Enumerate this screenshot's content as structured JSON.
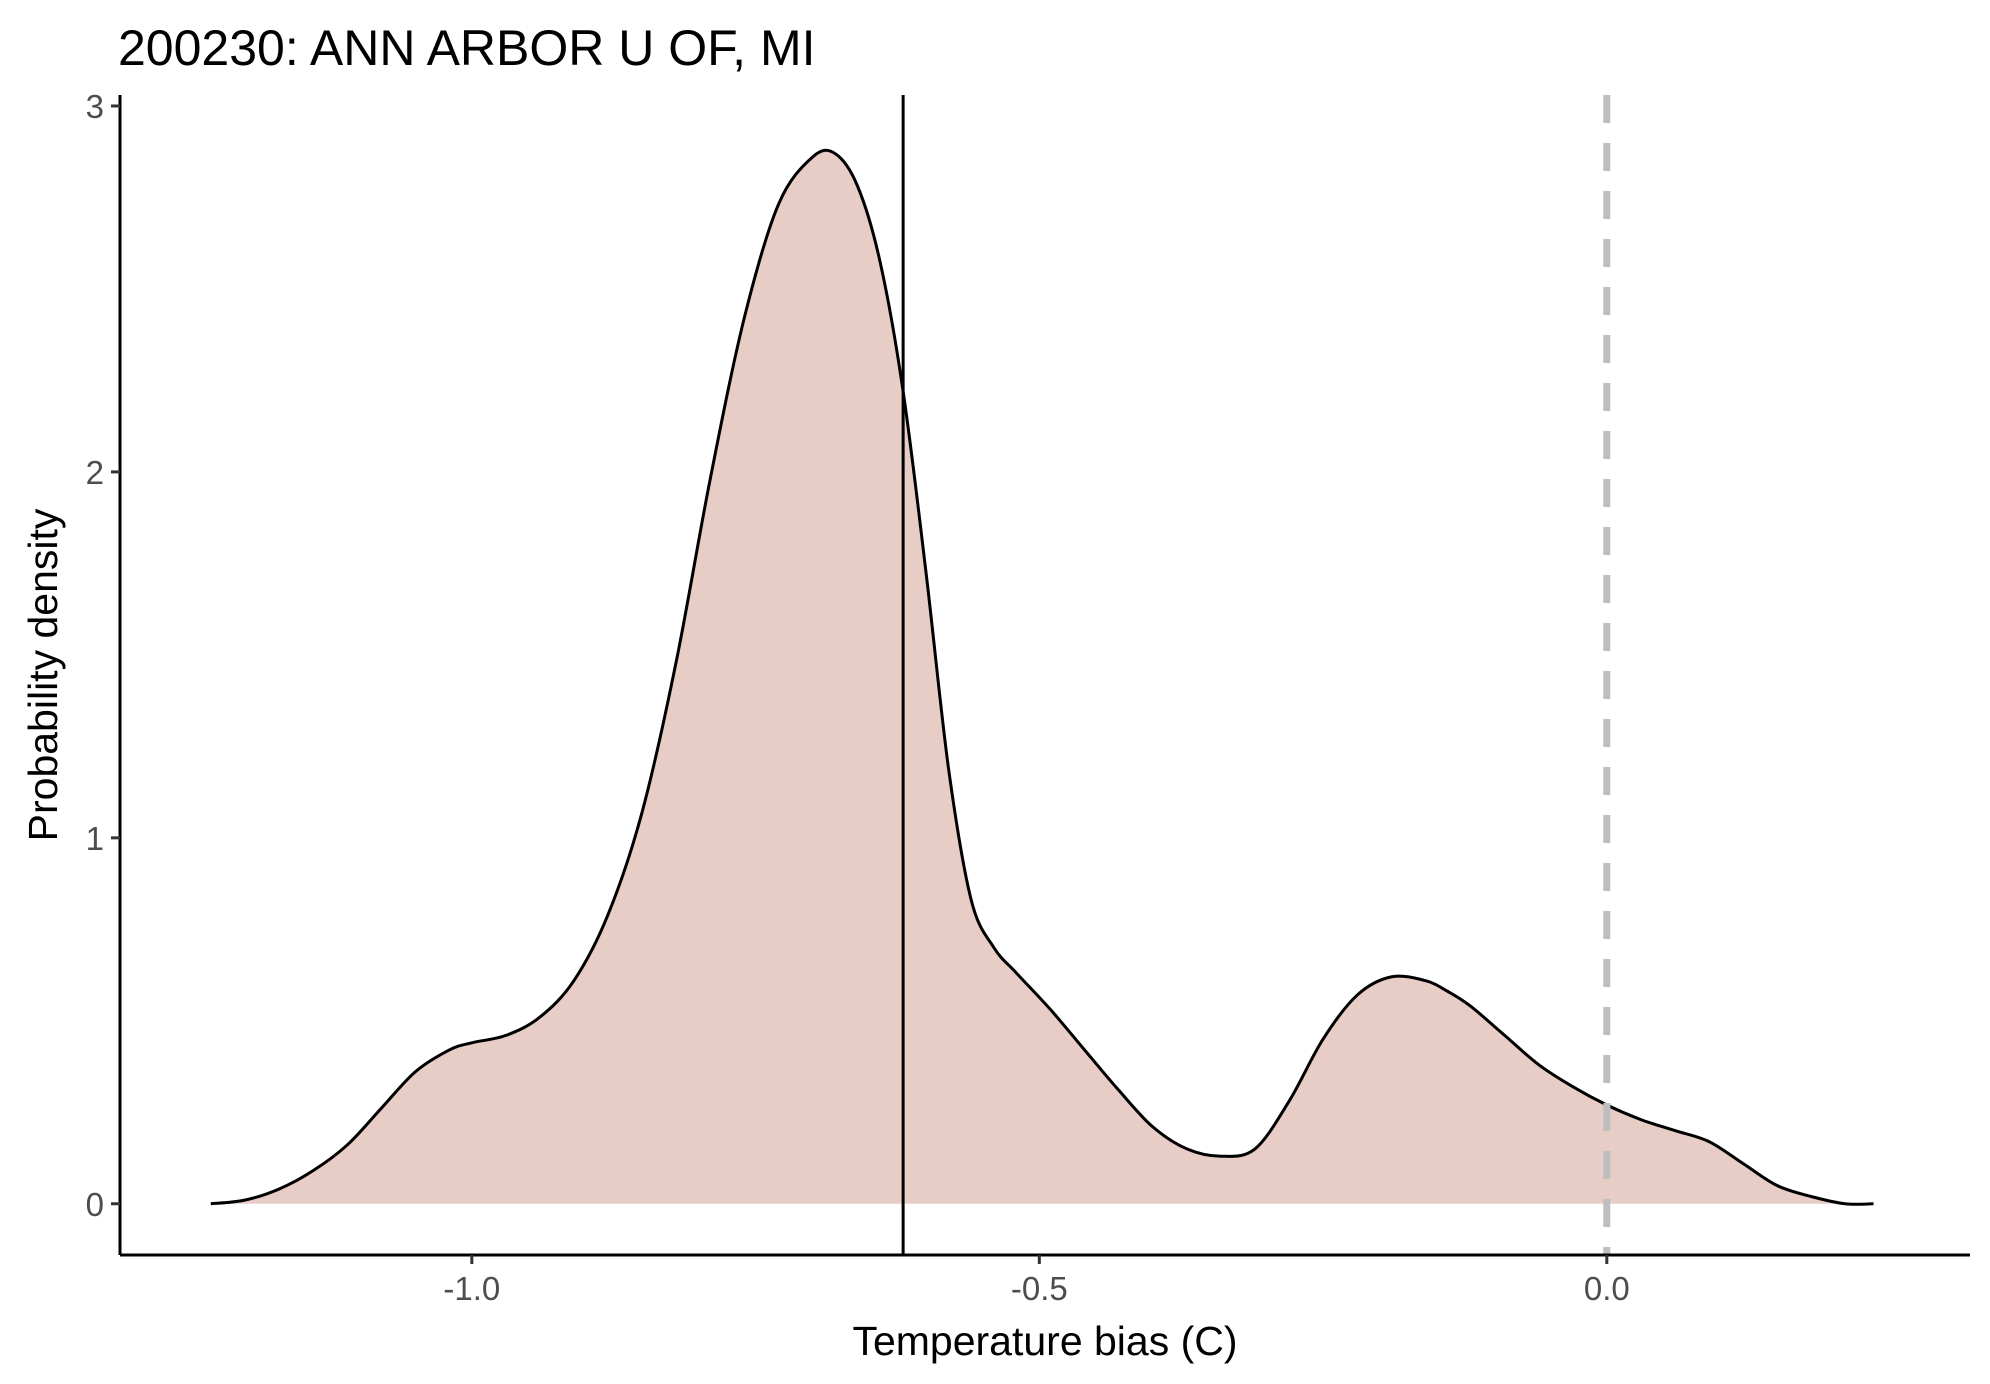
{
  "chart_data": {
    "type": "area",
    "title": "200230: ANN ARBOR U OF, MI",
    "xlabel": "Temperature bias (C)",
    "ylabel": "Probability density",
    "xlim": [
      -1.31,
      0.32
    ],
    "ylim": [
      -0.14,
      3.03
    ],
    "x_ticks": [
      -1.0,
      -0.5,
      0.0
    ],
    "x_tick_labels": [
      "-1.0",
      "-0.5",
      "0.0"
    ],
    "y_ticks": [
      0,
      1,
      2,
      3
    ],
    "y_tick_labels": [
      "0",
      "1",
      "2",
      "3"
    ],
    "grid": false,
    "legend": "none",
    "fill_color": "#e8cdc6",
    "line_color": "#000000",
    "series": [
      {
        "x": [
          -1.23,
          -1.2,
          -1.17,
          -1.14,
          -1.11,
          -1.08,
          -1.05,
          -1.02,
          -1.0,
          -0.97,
          -0.94,
          -0.91,
          -0.88,
          -0.85,
          -0.82,
          -0.79,
          -0.76,
          -0.73,
          -0.7,
          -0.68,
          -0.66,
          -0.64,
          -0.62,
          -0.6,
          -0.58,
          -0.56,
          -0.54,
          -0.52,
          -0.49,
          -0.46,
          -0.43,
          -0.4,
          -0.37,
          -0.34,
          -0.31,
          -0.28,
          -0.25,
          -0.22,
          -0.19,
          -0.16,
          -0.14,
          -0.12,
          -0.09,
          -0.06,
          -0.03,
          0.0,
          0.03,
          0.06,
          0.09,
          0.12,
          0.15,
          0.18,
          0.21,
          0.235
        ],
        "y": [
          0.0,
          0.01,
          0.04,
          0.09,
          0.16,
          0.26,
          0.36,
          0.42,
          0.44,
          0.46,
          0.51,
          0.61,
          0.79,
          1.07,
          1.48,
          1.98,
          2.42,
          2.73,
          2.86,
          2.87,
          2.78,
          2.57,
          2.22,
          1.73,
          1.19,
          0.83,
          0.7,
          0.63,
          0.53,
          0.42,
          0.31,
          0.21,
          0.15,
          0.13,
          0.15,
          0.28,
          0.45,
          0.57,
          0.62,
          0.61,
          0.58,
          0.54,
          0.46,
          0.38,
          0.32,
          0.27,
          0.23,
          0.2,
          0.17,
          0.11,
          0.05,
          0.02,
          0.0,
          0.0
        ]
      }
    ],
    "vlines": [
      {
        "x": -0.62,
        "style": "solid",
        "color": "#000000"
      },
      {
        "x": 0.0,
        "style": "dashed",
        "color": "#bebebe"
      }
    ]
  }
}
